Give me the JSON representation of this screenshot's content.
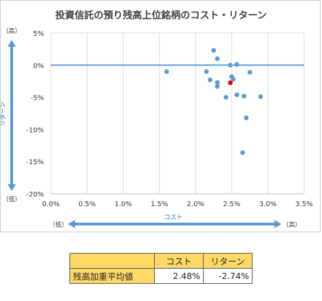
{
  "chart_data": {
    "type": "scatter",
    "title": "投資信託の預り残高上位銘柄のコスト・リターン",
    "xlabel": "コスト",
    "ylabel": "リターン",
    "x_low_label": "（低）",
    "x_high_label": "（高）",
    "y_high_label": "（高）",
    "y_low_label": "（低）",
    "xlim": [
      0,
      3.5
    ],
    "ylim": [
      -20,
      5
    ],
    "xticks": [
      "0.0%",
      "0.5%",
      "1.0%",
      "1.5%",
      "2.0%",
      "2.5%",
      "3.0%",
      "3.5%"
    ],
    "xtick_values": [
      0,
      0.5,
      1.0,
      1.5,
      2.0,
      2.5,
      3.0,
      3.5
    ],
    "yticks": [
      "5%",
      "0%",
      "-5%",
      "-10%",
      "-15%",
      "-20%"
    ],
    "ytick_values": [
      5,
      0,
      -5,
      -10,
      -15,
      -20
    ],
    "reference_line_y": 0,
    "series": [
      {
        "color": "#5b9bd5",
        "points": [
          [
            1.6,
            -1.0
          ],
          [
            2.15,
            -1.0
          ],
          [
            2.2,
            -2.3
          ],
          [
            2.25,
            2.3
          ],
          [
            2.3,
            1.0
          ],
          [
            2.3,
            -2.7
          ],
          [
            2.3,
            -3.3
          ],
          [
            2.42,
            -5.0
          ],
          [
            2.48,
            0.0
          ],
          [
            2.5,
            -1.8
          ],
          [
            2.52,
            -2.2
          ],
          [
            2.57,
            0.1
          ],
          [
            2.57,
            -4.6
          ],
          [
            2.65,
            -13.6
          ],
          [
            2.67,
            -4.8
          ],
          [
            2.7,
            -8.2
          ],
          [
            2.75,
            -1.1
          ],
          [
            2.9,
            -4.9
          ]
        ]
      },
      {
        "color": "#e00000",
        "points": [
          [
            2.48,
            -2.74
          ]
        ]
      }
    ],
    "axis_arrow_color": "#5b9bd5",
    "grid": "vertical"
  },
  "table": {
    "headers": [
      "",
      "コスト",
      "リターン"
    ],
    "row_label": "残高加重平均値",
    "cost": "2.48%",
    "return": "-2.74%"
  }
}
